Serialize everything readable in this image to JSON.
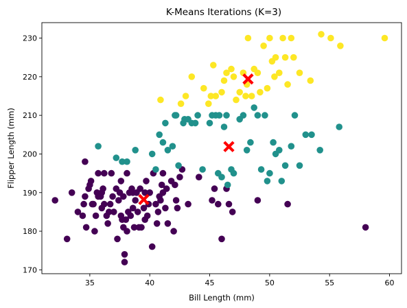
{
  "chart_data": {
    "type": "scatter",
    "title": "K-Means Iterations (K=3)",
    "xlabel": "Bill Length (mm)",
    "ylabel": "Flipper Length (mm)",
    "xlim": [
      31,
      61
    ],
    "ylim": [
      169,
      234
    ],
    "xticks": [
      35,
      40,
      45,
      50,
      55,
      60
    ],
    "yticks": [
      170,
      180,
      190,
      200,
      210,
      220,
      230
    ],
    "grid": false,
    "legend": "none",
    "colors": {
      "cluster0": "#440154",
      "cluster1": "#21918c",
      "cluster2": "#fde725",
      "centroid": "#ff0000"
    },
    "series": [
      {
        "cluster": 0,
        "color": "#440154",
        "points": [
          [
            32.1,
            188
          ],
          [
            33.1,
            178
          ],
          [
            33.5,
            190
          ],
          [
            34.0,
            185
          ],
          [
            34.4,
            184
          ],
          [
            34.5,
            187
          ],
          [
            34.6,
            189
          ],
          [
            34.6,
            198
          ],
          [
            34.7,
            181
          ],
          [
            34.9,
            191
          ],
          [
            35.0,
            192
          ],
          [
            35.1,
            193
          ],
          [
            35.2,
            187
          ],
          [
            35.3,
            187
          ],
          [
            35.4,
            180
          ],
          [
            35.5,
            184
          ],
          [
            35.6,
            190
          ],
          [
            35.7,
            189
          ],
          [
            35.7,
            195
          ],
          [
            35.9,
            189
          ],
          [
            36.0,
            186
          ],
          [
            36.0,
            190
          ],
          [
            36.1,
            191
          ],
          [
            36.2,
            187
          ],
          [
            36.2,
            195
          ],
          [
            36.4,
            184
          ],
          [
            36.5,
            182
          ],
          [
            36.6,
            185
          ],
          [
            36.7,
            187
          ],
          [
            36.8,
            195
          ],
          [
            36.9,
            189
          ],
          [
            37.0,
            185
          ],
          [
            37.2,
            191
          ],
          [
            37.3,
            178
          ],
          [
            37.4,
            188
          ],
          [
            37.5,
            190
          ],
          [
            37.6,
            184
          ],
          [
            37.6,
            193
          ],
          [
            37.7,
            183
          ],
          [
            37.8,
            181
          ],
          [
            37.8,
            189
          ],
          [
            37.9,
            172
          ],
          [
            37.9,
            174
          ],
          [
            38.0,
            183
          ],
          [
            38.1,
            180
          ],
          [
            38.1,
            195
          ],
          [
            38.2,
            185
          ],
          [
            38.3,
            190
          ],
          [
            38.4,
            184
          ],
          [
            38.5,
            191
          ],
          [
            38.6,
            186
          ],
          [
            38.6,
            190
          ],
          [
            38.7,
            181
          ],
          [
            38.8,
            188
          ],
          [
            38.9,
            190
          ],
          [
            39.0,
            185
          ],
          [
            39.1,
            181
          ],
          [
            39.2,
            191
          ],
          [
            39.3,
            181
          ],
          [
            39.5,
            186
          ],
          [
            39.6,
            183
          ],
          [
            39.6,
            190
          ],
          [
            39.7,
            193
          ],
          [
            39.8,
            184
          ],
          [
            39.9,
            187
          ],
          [
            40.0,
            190
          ],
          [
            40.2,
            176
          ],
          [
            40.3,
            195
          ],
          [
            40.5,
            187
          ],
          [
            40.6,
            182
          ],
          [
            40.7,
            185
          ],
          [
            40.8,
            189
          ],
          [
            40.9,
            188
          ],
          [
            41.0,
            192
          ],
          [
            41.1,
            190
          ],
          [
            41.1,
            195
          ],
          [
            41.3,
            186
          ],
          [
            41.4,
            191
          ],
          [
            41.5,
            182
          ],
          [
            41.8,
            193
          ],
          [
            42.0,
            180
          ],
          [
            42.1,
            192
          ],
          [
            42.2,
            188
          ],
          [
            42.3,
            186
          ],
          [
            42.5,
            194
          ],
          [
            42.7,
            196
          ],
          [
            43.2,
            187
          ],
          [
            44.1,
            194
          ],
          [
            45.2,
            188
          ],
          [
            45.4,
            191
          ],
          [
            45.7,
            187
          ],
          [
            46.0,
            178
          ],
          [
            46.4,
            191
          ],
          [
            46.6,
            187
          ],
          [
            46.9,
            185
          ],
          [
            49.0,
            188
          ],
          [
            51.5,
            187
          ],
          [
            58.0,
            181
          ]
        ]
      },
      {
        "cluster": 1,
        "color": "#21918c",
        "points": [
          [
            35.7,
            202
          ],
          [
            37.2,
            199
          ],
          [
            37.7,
            198
          ],
          [
            38.1,
            198
          ],
          [
            38.8,
            201
          ],
          [
            40.2,
            200
          ],
          [
            40.5,
            196
          ],
          [
            40.8,
            205
          ],
          [
            41.1,
            203
          ],
          [
            41.3,
            208
          ],
          [
            41.5,
            201
          ],
          [
            41.9,
            202
          ],
          [
            42.1,
            210
          ],
          [
            42.2,
            210
          ],
          [
            42.4,
            197
          ],
          [
            42.8,
            208
          ],
          [
            42.9,
            209
          ],
          [
            43.2,
            209
          ],
          [
            43.5,
            208
          ],
          [
            43.8,
            208
          ],
          [
            44.0,
            210
          ],
          [
            44.4,
            196
          ],
          [
            45.0,
            208
          ],
          [
            45.2,
            210
          ],
          [
            45.5,
            210
          ],
          [
            45.7,
            195
          ],
          [
            45.8,
            210
          ],
          [
            46.0,
            194
          ],
          [
            46.2,
            207
          ],
          [
            46.4,
            210
          ],
          [
            46.5,
            192
          ],
          [
            46.8,
            196
          ],
          [
            47.0,
            195
          ],
          [
            47.5,
            209
          ],
          [
            47.8,
            210
          ],
          [
            48.1,
            201
          ],
          [
            48.4,
            203
          ],
          [
            48.7,
            212
          ],
          [
            49.0,
            210
          ],
          [
            49.3,
            196
          ],
          [
            49.6,
            210
          ],
          [
            49.8,
            193
          ],
          [
            50.0,
            195
          ],
          [
            50.3,
            203
          ],
          [
            50.5,
            200
          ],
          [
            50.8,
            201
          ],
          [
            51.0,
            193
          ],
          [
            51.3,
            197
          ],
          [
            51.8,
            202
          ],
          [
            52.1,
            210
          ],
          [
            52.5,
            197
          ],
          [
            53.0,
            205
          ],
          [
            53.5,
            205
          ],
          [
            54.2,
            201
          ],
          [
            55.8,
            207
          ]
        ]
      },
      {
        "cluster": 2,
        "color": "#fde725",
        "points": [
          [
            40.9,
            214
          ],
          [
            42.6,
            213
          ],
          [
            43.0,
            215
          ],
          [
            43.5,
            220
          ],
          [
            44.5,
            217
          ],
          [
            44.9,
            213
          ],
          [
            45.1,
            215
          ],
          [
            45.3,
            223
          ],
          [
            45.5,
            215
          ],
          [
            46.0,
            216
          ],
          [
            46.2,
            219
          ],
          [
            46.4,
            221
          ],
          [
            46.8,
            222
          ],
          [
            47.0,
            220
          ],
          [
            47.2,
            214
          ],
          [
            47.5,
            216
          ],
          [
            47.8,
            221
          ],
          [
            48.0,
            215
          ],
          [
            48.1,
            218
          ],
          [
            48.2,
            230
          ],
          [
            48.5,
            215
          ],
          [
            48.7,
            222
          ],
          [
            49.0,
            221
          ],
          [
            49.2,
            216
          ],
          [
            49.5,
            228
          ],
          [
            49.8,
            217
          ],
          [
            50.0,
            230
          ],
          [
            50.2,
            224
          ],
          [
            50.4,
            220
          ],
          [
            50.5,
            225
          ],
          [
            50.8,
            221
          ],
          [
            51.1,
            230
          ],
          [
            51.3,
            225
          ],
          [
            51.5,
            218
          ],
          [
            51.8,
            230
          ],
          [
            52.0,
            225
          ],
          [
            52.5,
            221
          ],
          [
            53.4,
            219
          ],
          [
            54.3,
            231
          ],
          [
            55.1,
            230
          ],
          [
            55.9,
            228
          ],
          [
            59.6,
            230
          ]
        ]
      }
    ],
    "centroids": [
      [
        39.5,
        188.2
      ],
      [
        46.6,
        201.9
      ],
      [
        48.2,
        219.4
      ]
    ]
  }
}
